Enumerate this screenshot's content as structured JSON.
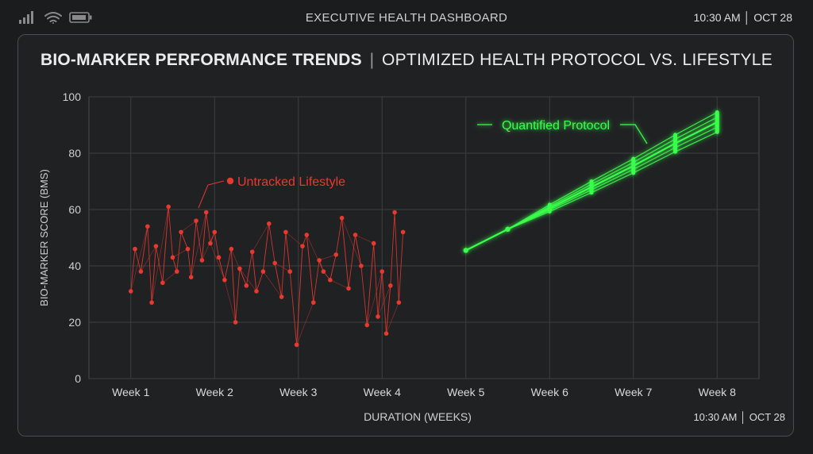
{
  "status_bar": {
    "title": "EXECUTIVE HEALTH DASHBOARD",
    "time": "10:30 AM │ OCT 28",
    "icons": [
      "signal-icon",
      "wifi-icon",
      "battery-icon"
    ]
  },
  "panel": {
    "title_bold": "BIO-MARKER PERFORMANCE TRENDS",
    "title_sep": "|",
    "title_light": "OPTIMIZED HEALTH PROTOCOL VS. LIFESTYLE",
    "footer_time": "10:30 AM │ OCT 28"
  },
  "chart_data": {
    "type": "line",
    "title": "BIO-MARKER PERFORMANCE TRENDS | OPTIMIZED HEALTH PROTOCOL VS. LIFESTYLE",
    "xlabel": "DURATION (WEEKS)",
    "ylabel": "BIO-MARKER SCORE (BMS)",
    "ylim": [
      0,
      100
    ],
    "xlim": [
      0.5,
      8.5
    ],
    "yticks": [
      0,
      20,
      40,
      60,
      80,
      100
    ],
    "categories": [
      "Week 1",
      "Week 2",
      "Week 3",
      "Week 4",
      "Week 5",
      "Week 6",
      "Week 7",
      "Week 8"
    ],
    "grid": true,
    "colors": {
      "lifestyle": "#e8392f",
      "protocol": "#39ff4a"
    },
    "series": [
      {
        "name": "Untracked Lifestyle",
        "style": "scatter-line",
        "x": [
          1.0,
          1.05,
          1.12,
          1.2,
          1.25,
          1.3,
          1.38,
          1.45,
          1.5,
          1.55,
          1.6,
          1.68,
          1.72,
          1.78,
          1.85,
          1.9,
          1.95,
          2.0,
          2.05,
          2.12,
          2.2,
          2.25,
          2.3,
          2.38,
          2.45,
          2.5,
          2.58,
          2.65,
          2.72,
          2.8,
          2.85,
          2.9,
          2.98,
          3.05,
          3.1,
          3.18,
          3.25,
          3.3,
          3.38,
          3.45,
          3.52,
          3.6,
          3.68,
          3.75,
          3.82,
          3.9,
          3.95,
          4.0,
          4.05,
          4.1,
          4.15,
          4.2,
          4.25
        ],
        "y": [
          31,
          46,
          38,
          54,
          27,
          47,
          34,
          61,
          43,
          38,
          52,
          46,
          36,
          56,
          42,
          59,
          48,
          52,
          43,
          35,
          46,
          20,
          39,
          33,
          45,
          31,
          38,
          55,
          41,
          29,
          52,
          38,
          12,
          47,
          51,
          27,
          42,
          38,
          35,
          44,
          57,
          32,
          51,
          40,
          19,
          48,
          22,
          38,
          16,
          33,
          59,
          27,
          52
        ]
      },
      {
        "name": "Quantified Protocol",
        "style": "line",
        "x": [
          5,
          5.5,
          6,
          6.5,
          7,
          7.5,
          8
        ],
        "y": [
          45.5,
          53,
          60.5,
          68,
          75.5,
          83.5,
          91
        ],
        "spread": [
          0,
          0,
          1.2,
          2,
          2.5,
          3,
          3.5
        ]
      }
    ],
    "annotations": [
      {
        "text": "Untracked Lifestyle",
        "series": "Untracked Lifestyle"
      },
      {
        "text": "Quantified Protocol",
        "series": "Quantified Protocol"
      }
    ]
  }
}
